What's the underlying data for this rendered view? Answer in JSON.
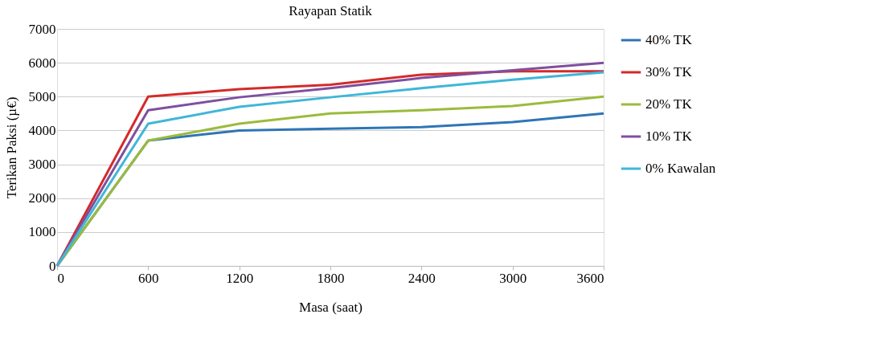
{
  "chart_data": {
    "type": "line",
    "title": "Rayapan Statik",
    "xlabel": "Masa (saat)",
    "ylabel": "Terikan Paksi (µ€)",
    "categories": [
      "0",
      "600",
      "1200",
      "1800",
      "2400",
      "3000",
      "3600"
    ],
    "series": [
      {
        "name": "40% TK",
        "color": "#2e75b6",
        "values": [
          0,
          3700,
          4000,
          4050,
          4100,
          4250,
          4500
        ]
      },
      {
        "name": "30% TK",
        "color": "#d42a2a",
        "values": [
          0,
          5000,
          5220,
          5350,
          5650,
          5750,
          5750
        ]
      },
      {
        "name": "20% TK",
        "color": "#9bbb3c",
        "values": [
          0,
          3700,
          4200,
          4500,
          4600,
          4720,
          5000
        ]
      },
      {
        "name": "10% TK",
        "color": "#7f4f9f",
        "values": [
          0,
          4600,
          4980,
          5250,
          5550,
          5780,
          6000
        ]
      },
      {
        "name": "0% Kawalan",
        "color": "#3fb6d8",
        "values": [
          0,
          4200,
          4700,
          4980,
          5250,
          5500,
          5720
        ]
      }
    ],
    "ylim": [
      0,
      7000
    ],
    "yticks": [
      0,
      1000,
      2000,
      3000,
      4000,
      5000,
      6000,
      7000
    ],
    "grid": "y",
    "legend": "right",
    "marker": "none",
    "line_style": "solid"
  }
}
